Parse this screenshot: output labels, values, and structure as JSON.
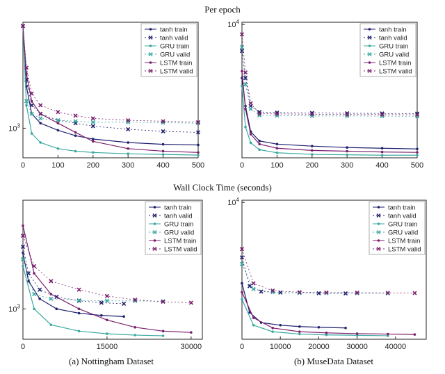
{
  "section_titles": {
    "top": "Per epoch",
    "bottom": "Wall Clock Time (seconds)"
  },
  "captions": {
    "left": "(a) Nottingham Dataset",
    "right": "(b) MuseData Dataset"
  },
  "colors": {
    "tanh": "#1f1f6e",
    "GRU": "#3aa8a0",
    "LSTM": "#7a1f6e"
  },
  "chart_data": [
    {
      "type": "line",
      "scale": "log-y",
      "legend_position": "top-right",
      "xlim": [
        0,
        500
      ],
      "ylim": [
        750,
        2800
      ],
      "xticks": [
        0,
        100,
        200,
        300,
        400,
        500
      ],
      "yticks": [
        {
          "value": 1000,
          "label": "10^3"
        }
      ],
      "series": [
        {
          "name": "tanh train",
          "model": "tanh",
          "marker": "dot",
          "x": [
            0,
            10,
            25,
            50,
            100,
            150,
            200,
            300,
            400,
            500
          ],
          "y": [
            2700,
            1500,
            1150,
            1050,
            980,
            930,
            900,
            870,
            855,
            850
          ]
        },
        {
          "name": "tanh valid",
          "model": "tanh",
          "marker": "cross",
          "x": [
            0,
            10,
            25,
            50,
            100,
            150,
            200,
            300,
            400,
            500
          ],
          "y": [
            2700,
            1600,
            1250,
            1150,
            1080,
            1050,
            1020,
            990,
            970,
            960
          ]
        },
        {
          "name": "GRU train",
          "model": "GRU",
          "marker": "dot",
          "x": [
            0,
            10,
            25,
            50,
            100,
            150,
            200,
            300,
            400,
            500
          ],
          "y": [
            2700,
            1250,
            950,
            870,
            820,
            800,
            790,
            780,
            775,
            770
          ]
        },
        {
          "name": "GRU valid",
          "model": "GRU",
          "marker": "cross",
          "x": [
            0,
            10,
            25,
            50,
            100,
            150,
            200,
            300,
            400,
            500
          ],
          "y": [
            2700,
            1300,
            1150,
            1100,
            1080,
            1070,
            1060,
            1060,
            1055,
            1050
          ]
        },
        {
          "name": "LSTM train",
          "model": "LSTM",
          "marker": "dot",
          "x": [
            0,
            10,
            25,
            50,
            100,
            150,
            200,
            300,
            400,
            500
          ],
          "y": [
            2700,
            1700,
            1300,
            1150,
            1050,
            960,
            880,
            820,
            800,
            790
          ]
        },
        {
          "name": "LSTM valid",
          "model": "LSTM",
          "marker": "cross",
          "x": [
            0,
            10,
            25,
            50,
            100,
            150,
            200,
            300,
            400,
            500
          ],
          "y": [
            2700,
            1800,
            1400,
            1250,
            1170,
            1130,
            1100,
            1080,
            1070,
            1060
          ]
        }
      ]
    },
    {
      "type": "line",
      "scale": "log-y",
      "legend_position": "top-right",
      "xlim": [
        0,
        500
      ],
      "ylim": [
        500,
        10500
      ],
      "xticks": [
        0,
        100,
        200,
        300,
        400,
        500
      ],
      "yticks": [
        {
          "value": 10000,
          "label": "10^4"
        }
      ],
      "series": [
        {
          "name": "tanh train",
          "model": "tanh",
          "marker": "dot",
          "x": [
            0,
            10,
            25,
            50,
            100,
            200,
            300,
            400,
            500
          ],
          "y": [
            3000,
            1600,
            900,
            730,
            680,
            650,
            630,
            620,
            610
          ]
        },
        {
          "name": "tanh valid",
          "model": "tanh",
          "marker": "cross",
          "x": [
            0,
            10,
            25,
            50,
            100,
            200,
            300,
            400,
            500
          ],
          "y": [
            5500,
            3000,
            1600,
            1400,
            1380,
            1370,
            1360,
            1355,
            1350
          ]
        },
        {
          "name": "GRU train",
          "model": "GRU",
          "marker": "dot",
          "x": [
            0,
            10,
            25,
            50,
            100,
            200,
            300,
            400,
            500
          ],
          "y": [
            2500,
            1000,
            700,
            600,
            560,
            540,
            535,
            530,
            530
          ]
        },
        {
          "name": "GRU valid",
          "model": "GRU",
          "marker": "cross",
          "x": [
            0,
            10,
            25,
            50,
            100,
            200,
            300,
            400,
            500
          ],
          "y": [
            6000,
            2600,
            1500,
            1300,
            1290,
            1280,
            1280,
            1275,
            1270
          ]
        },
        {
          "name": "LSTM train",
          "model": "LSTM",
          "marker": "dot",
          "x": [
            0,
            10,
            25,
            50,
            100,
            200,
            300,
            400,
            500
          ],
          "y": [
            3500,
            1500,
            850,
            680,
            620,
            590,
            580,
            570,
            565
          ]
        },
        {
          "name": "LSTM valid",
          "model": "LSTM",
          "marker": "cross",
          "x": [
            0,
            10,
            25,
            50,
            100,
            200,
            300,
            400,
            500
          ],
          "y": [
            8000,
            3400,
            1700,
            1350,
            1340,
            1330,
            1320,
            1320,
            1315
          ]
        }
      ]
    },
    {
      "type": "line",
      "scale": "log-y",
      "legend_position": "top-right",
      "xlim": [
        0,
        32000
      ],
      "ylim": [
        750,
        2800
      ],
      "xticks": [
        0,
        15000,
        30000
      ],
      "yticks": [
        {
          "value": 1000,
          "label": "10^3"
        }
      ],
      "series": [
        {
          "name": "tanh train",
          "model": "tanh",
          "marker": "dot",
          "x": [
            0,
            1000,
            3000,
            6000,
            10000,
            14000,
            18000
          ],
          "y": [
            1700,
            1300,
            1100,
            1000,
            960,
            940,
            930
          ]
        },
        {
          "name": "tanh valid",
          "model": "tanh",
          "marker": "cross",
          "x": [
            0,
            1000,
            3000,
            6000,
            10000,
            14000,
            18000
          ],
          "y": [
            1800,
            1400,
            1200,
            1120,
            1080,
            1060,
            1050
          ]
        },
        {
          "name": "GRU train",
          "model": "GRU",
          "marker": "dot",
          "x": [
            0,
            2000,
            5000,
            10000,
            15000,
            20000,
            25000
          ],
          "y": [
            1500,
            1000,
            860,
            810,
            790,
            780,
            775
          ]
        },
        {
          "name": "GRU valid",
          "model": "GRU",
          "marker": "cross",
          "x": [
            0,
            2000,
            5000,
            10000,
            15000,
            20000,
            25000
          ],
          "y": [
            1600,
            1150,
            1100,
            1085,
            1080,
            1078,
            1075
          ]
        },
        {
          "name": "LSTM train",
          "model": "LSTM",
          "marker": "dot",
          "x": [
            0,
            2000,
            5000,
            10000,
            15000,
            20000,
            25000,
            30000
          ],
          "y": [
            2200,
            1400,
            1150,
            1000,
            900,
            840,
            810,
            800
          ]
        },
        {
          "name": "LSTM valid",
          "model": "LSTM",
          "marker": "cross",
          "x": [
            0,
            2000,
            5000,
            10000,
            15000,
            20000,
            25000,
            30000
          ],
          "y": [
            2000,
            1500,
            1300,
            1200,
            1130,
            1090,
            1070,
            1060
          ]
        }
      ]
    },
    {
      "type": "line",
      "scale": "log-y",
      "legend_position": "top-right",
      "xlim": [
        0,
        48000
      ],
      "ylim": [
        500,
        10500
      ],
      "xticks": [
        0,
        10000,
        20000,
        30000,
        40000
      ],
      "yticks": [
        {
          "value": 10000,
          "label": "10^4"
        }
      ],
      "series": [
        {
          "name": "tanh train",
          "model": "tanh",
          "marker": "dot",
          "x": [
            0,
            2000,
            5000,
            10000,
            15000,
            20000,
            27000
          ],
          "y": [
            1700,
            900,
            720,
            680,
            660,
            650,
            640
          ]
        },
        {
          "name": "tanh valid",
          "model": "tanh",
          "marker": "cross",
          "x": [
            0,
            2000,
            5000,
            10000,
            15000,
            20000,
            27000
          ],
          "y": [
            3000,
            1600,
            1420,
            1390,
            1380,
            1370,
            1365
          ]
        },
        {
          "name": "GRU train",
          "model": "GRU",
          "marker": "dot",
          "x": [
            0,
            3000,
            8000,
            15000,
            22000,
            30000,
            38000
          ],
          "y": [
            1200,
            680,
            590,
            560,
            550,
            545,
            540
          ]
        },
        {
          "name": "GRU valid",
          "model": "GRU",
          "marker": "cross",
          "x": [
            0,
            3000,
            8000,
            15000,
            22000,
            30000,
            38000
          ],
          "y": [
            2600,
            1500,
            1400,
            1380,
            1375,
            1370,
            1365
          ]
        },
        {
          "name": "LSTM train",
          "model": "LSTM",
          "marker": "dot",
          "x": [
            0,
            3000,
            8000,
            15000,
            22000,
            30000,
            38000,
            45000
          ],
          "y": [
            1400,
            800,
            640,
            590,
            575,
            565,
            560,
            555
          ]
        },
        {
          "name": "LSTM valid",
          "model": "LSTM",
          "marker": "cross",
          "x": [
            0,
            3000,
            8000,
            15000,
            22000,
            30000,
            38000,
            45000
          ],
          "y": [
            3600,
            1700,
            1450,
            1400,
            1390,
            1385,
            1380,
            1375
          ]
        }
      ]
    }
  ]
}
